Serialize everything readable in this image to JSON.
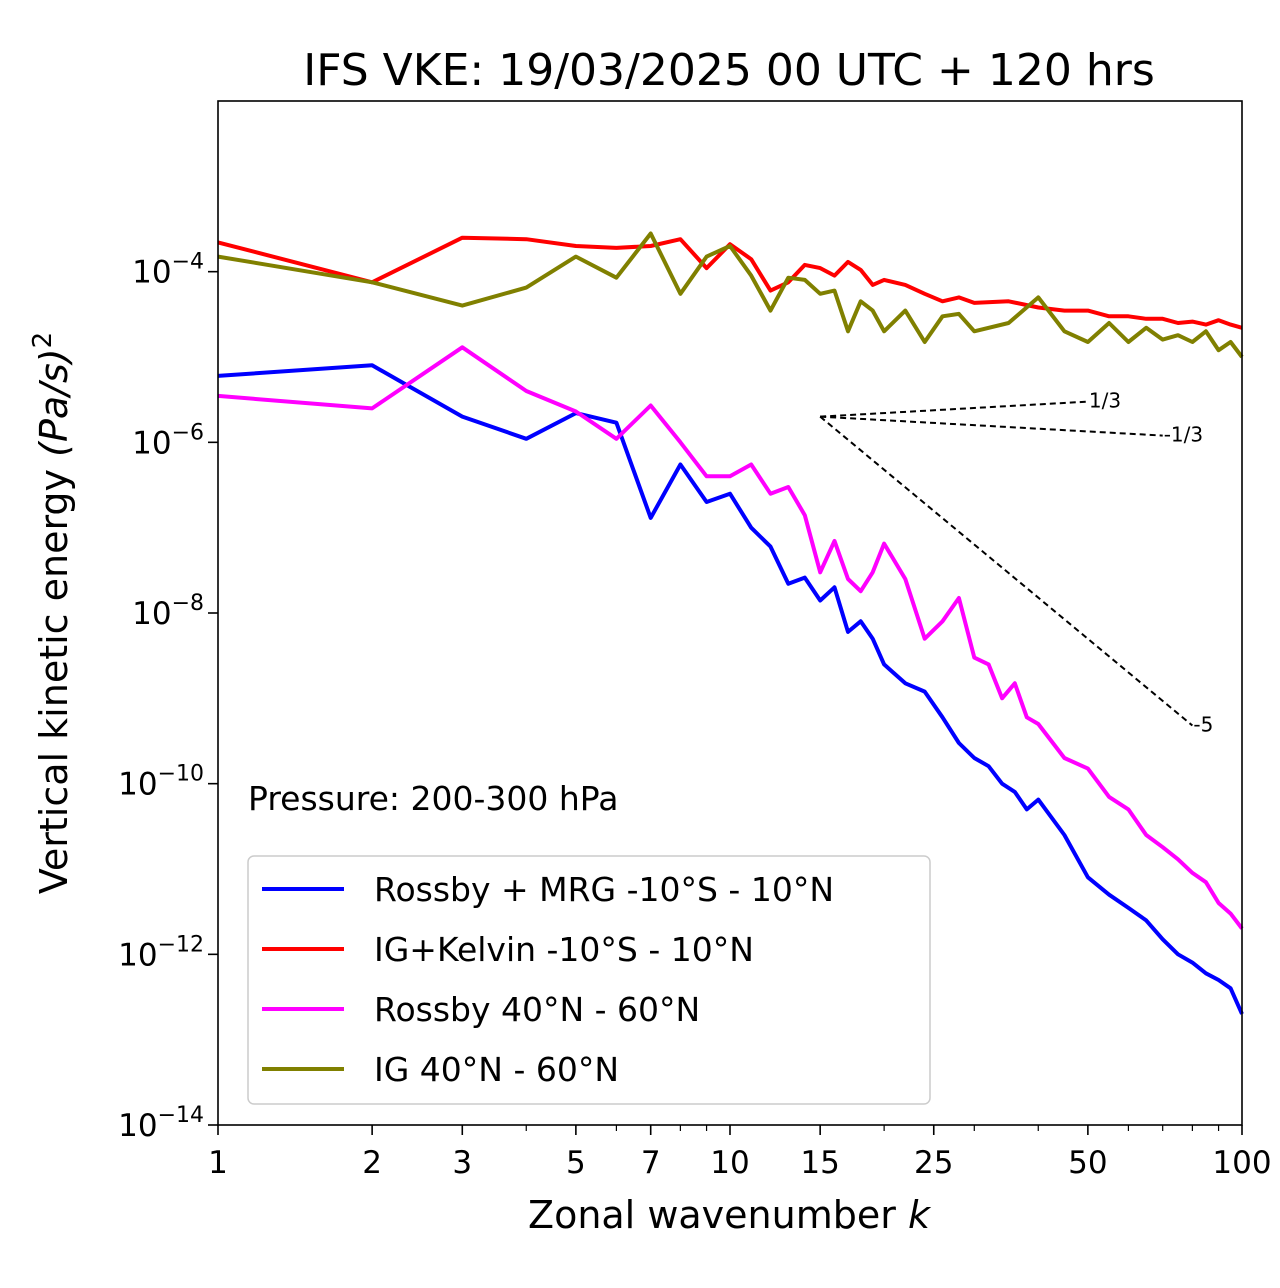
{
  "chart_data": {
    "type": "line",
    "title": "IFS VKE: 19/03/2025 00 UTC + 120 hrs",
    "xlabel": "Zonal wavenumber",
    "xlabel_var": "k",
    "ylabel_main": "Vertical kinetic energy",
    "ylabel_unit": "(Pa/s)",
    "ylabel_unit_exp": "2",
    "xscale": "log",
    "yscale": "log",
    "xlim": [
      1,
      100
    ],
    "ylim": [
      1e-14,
      0.01
    ],
    "xticks": [
      1,
      2,
      3,
      5,
      7,
      10,
      15,
      25,
      50,
      100
    ],
    "xtick_labels": [
      "1",
      "2",
      "3",
      "5",
      "7",
      "10",
      "15",
      "25",
      "50",
      "100"
    ],
    "yticks": [
      1e-14,
      1e-12,
      1e-10,
      1e-08,
      1e-06,
      0.0001
    ],
    "ytick_base": "10",
    "ytick_exponents": [
      "−14",
      "−12",
      "−10",
      "−8",
      "−6",
      "−4"
    ],
    "annotation": "Pressure: 200-300 hPa",
    "legend_position": "lower-left",
    "series": [
      {
        "name": "Rossby + MRG -10°S - 10°N",
        "color": "#0000ff",
        "x": [
          1,
          2,
          3,
          4,
          5,
          6,
          7,
          8,
          9,
          10,
          11,
          12,
          13,
          14,
          15,
          16,
          17,
          18,
          19,
          20,
          22,
          24,
          26,
          28,
          30,
          32,
          34,
          36,
          38,
          40,
          45,
          50,
          55,
          60,
          65,
          70,
          75,
          80,
          85,
          90,
          95,
          100
        ],
        "y": [
          6e-06,
          8e-06,
          2e-06,
          1.1e-06,
          2.2e-06,
          1.7e-06,
          1.3e-07,
          5.5e-07,
          2e-07,
          2.5e-07,
          1e-07,
          6e-08,
          2.2e-08,
          2.6e-08,
          1.4e-08,
          2e-08,
          6e-09,
          8e-09,
          5e-09,
          2.5e-09,
          1.5e-09,
          1.2e-09,
          6e-10,
          3e-10,
          2e-10,
          1.6e-10,
          1e-10,
          8e-11,
          5e-11,
          6.5e-11,
          2.5e-11,
          8e-12,
          5e-12,
          3.5e-12,
          2.5e-12,
          1.5e-12,
          1e-12,
          8e-13,
          6e-13,
          5e-13,
          4e-13,
          2e-13
        ]
      },
      {
        "name": "IG+Kelvin -10°S - 10°N",
        "color": "#ff0000",
        "x": [
          1,
          2,
          3,
          4,
          5,
          6,
          7,
          8,
          9,
          10,
          11,
          12,
          13,
          14,
          15,
          16,
          17,
          18,
          19,
          20,
          22,
          24,
          26,
          28,
          30,
          35,
          40,
          45,
          50,
          55,
          60,
          65,
          70,
          75,
          80,
          85,
          90,
          95,
          100
        ],
        "y": [
          0.00022,
          7.5e-05,
          0.00025,
          0.00024,
          0.0002,
          0.00019,
          0.0002,
          0.00024,
          0.00011,
          0.00021,
          0.00014,
          6e-05,
          7.5e-05,
          0.00012,
          0.00011,
          9e-05,
          0.00013,
          0.000105,
          7e-05,
          8e-05,
          7e-05,
          5.5e-05,
          4.5e-05,
          5e-05,
          4.3e-05,
          4.5e-05,
          3.8e-05,
          3.5e-05,
          3.5e-05,
          3e-05,
          3e-05,
          2.8e-05,
          2.8e-05,
          2.5e-05,
          2.6e-05,
          2.4e-05,
          2.7e-05,
          2.4e-05,
          2.2e-05
        ]
      },
      {
        "name": "Rossby 40°N - 60°N",
        "color": "#ff00ff",
        "x": [
          1,
          2,
          3,
          4,
          5,
          6,
          7,
          8,
          9,
          10,
          11,
          12,
          13,
          14,
          15,
          16,
          17,
          18,
          19,
          20,
          22,
          24,
          26,
          28,
          30,
          32,
          34,
          36,
          38,
          40,
          45,
          50,
          55,
          60,
          65,
          70,
          75,
          80,
          85,
          90,
          95,
          100
        ],
        "y": [
          3.5e-06,
          2.5e-06,
          1.3e-05,
          4e-06,
          2.3e-06,
          1.1e-06,
          2.7e-06,
          1e-06,
          4e-07,
          4e-07,
          5.5e-07,
          2.5e-07,
          3e-07,
          1.4e-07,
          3e-08,
          7e-08,
          2.5e-08,
          1.8e-08,
          3e-08,
          6.5e-08,
          2.5e-08,
          5e-09,
          8e-09,
          1.5e-08,
          3e-09,
          2.5e-09,
          1e-09,
          1.5e-09,
          6e-10,
          5e-10,
          2e-10,
          1.5e-10,
          7e-11,
          5e-11,
          2.5e-11,
          1.8e-11,
          1.3e-11,
          9e-12,
          7e-12,
          4e-12,
          3e-12,
          2e-12
        ]
      },
      {
        "name": "IG 40°N - 60°N",
        "color": "#808000",
        "x": [
          1,
          2,
          3,
          4,
          5,
          6,
          7,
          8,
          9,
          10,
          11,
          12,
          13,
          14,
          15,
          16,
          17,
          18,
          19,
          20,
          22,
          24,
          26,
          28,
          30,
          35,
          40,
          45,
          50,
          55,
          60,
          65,
          70,
          75,
          80,
          85,
          90,
          95,
          100
        ],
        "y": [
          0.00015,
          7.5e-05,
          4e-05,
          6.5e-05,
          0.00015,
          8.5e-05,
          0.00028,
          5.5e-05,
          0.00015,
          0.0002,
          9e-05,
          3.5e-05,
          8.5e-05,
          8e-05,
          5.5e-05,
          6e-05,
          2e-05,
          4.5e-05,
          3.5e-05,
          2e-05,
          3.5e-05,
          1.5e-05,
          3e-05,
          3.2e-05,
          2e-05,
          2.5e-05,
          5e-05,
          2e-05,
          1.5e-05,
          2.5e-05,
          1.5e-05,
          2.2e-05,
          1.6e-05,
          1.8e-05,
          1.5e-05,
          2e-05,
          1.2e-05,
          1.5e-05,
          1e-05
        ]
      }
    ],
    "reference_lines": [
      {
        "label": "1/3",
        "x": [
          15,
          50
        ],
        "y": [
          2e-06,
          3e-06
        ]
      },
      {
        "label": "-1/3",
        "x": [
          15,
          70
        ],
        "y": [
          2e-06,
          1.2e-06
        ]
      },
      {
        "label": "-5",
        "x": [
          15,
          80
        ],
        "y": [
          2e-06,
          4.8e-10
        ]
      }
    ]
  }
}
